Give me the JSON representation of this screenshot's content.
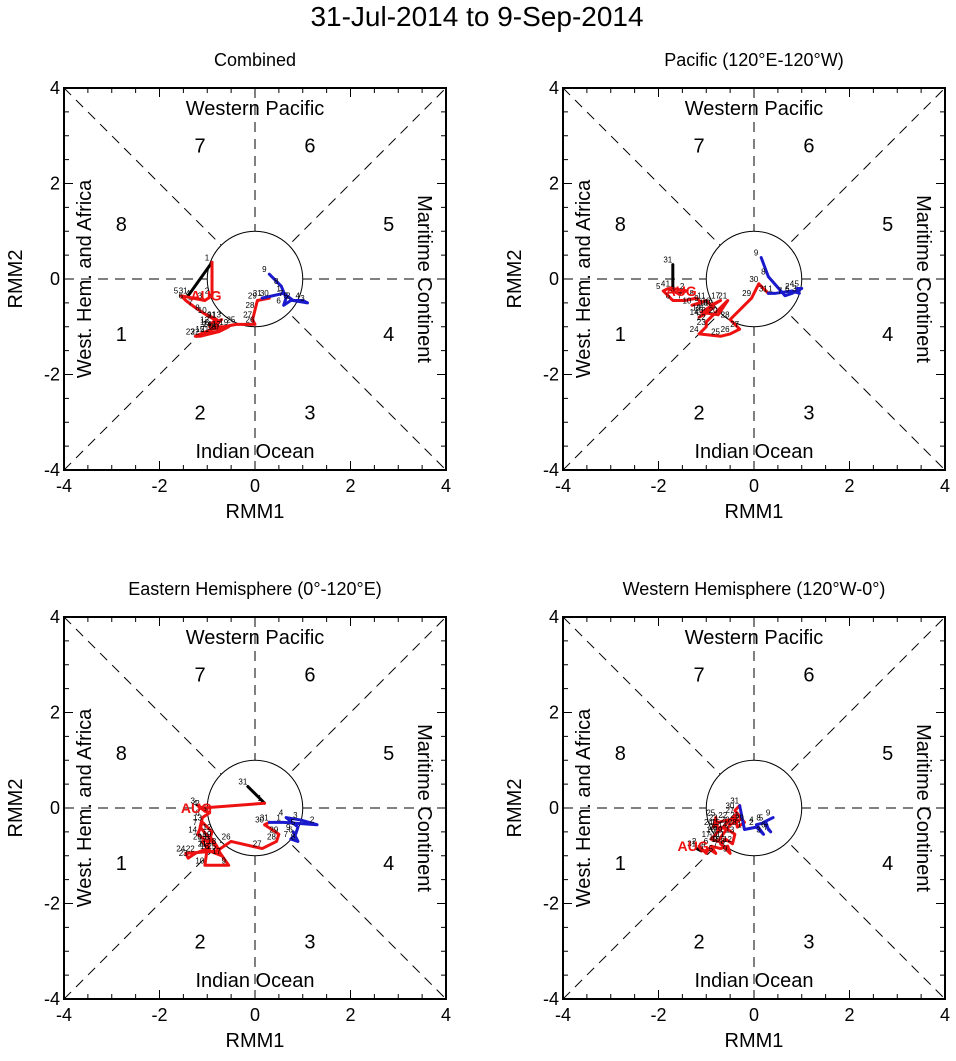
{
  "page_title": "31-Jul-2014 to 9-Sep-2014",
  "colors": {
    "jul": "#000000",
    "aug": "#ee1111",
    "sep": "#1a1acc",
    "frame": "#000000"
  },
  "chart_data": [
    {
      "type": "line",
      "title": "Combined",
      "xlabel": "RMM1",
      "ylabel": "RMM2",
      "xlim": [
        -4,
        4
      ],
      "ylim": [
        -4,
        4
      ],
      "ticks": [
        "-4",
        "-2",
        "0",
        "2",
        "4"
      ],
      "regions": {
        "top": "Western Pacific",
        "bottom": "Indian Ocean",
        "left": "West. Hem. and Africa",
        "right": "Maritime Continent"
      },
      "phases": [
        "1",
        "2",
        "3",
        "4",
        "5",
        "6",
        "7",
        "8"
      ],
      "month_label": "AUG",
      "series": [
        {
          "name": "Jul",
          "color": "#000000",
          "points": [
            [
              -1.4,
              -0.35
            ]
          ],
          "labels": [
            "31"
          ]
        },
        {
          "name": "Aug",
          "color": "#ee1111",
          "points": [
            [
              -0.9,
              0.35
            ],
            [
              -0.9,
              -0.35
            ],
            [
              -1.05,
              -0.45
            ],
            [
              -1.3,
              -0.4
            ],
            [
              -1.55,
              -0.35
            ],
            [
              -1.45,
              -0.45
            ],
            [
              -1.25,
              -0.6
            ],
            [
              -1.1,
              -0.7
            ],
            [
              -0.85,
              -0.85
            ],
            [
              -1.0,
              -0.75
            ],
            [
              -0.8,
              -0.85
            ],
            [
              -0.95,
              -0.95
            ],
            [
              -0.7,
              -0.85
            ],
            [
              -0.9,
              -1.05
            ],
            [
              -1.05,
              -1.15
            ],
            [
              -0.8,
              -1.1
            ],
            [
              -0.7,
              -1.05
            ],
            [
              -0.95,
              -1.0
            ],
            [
              -0.55,
              -1.0
            ],
            [
              -0.75,
              -1.1
            ],
            [
              -0.95,
              -1.15
            ],
            [
              -1.15,
              -1.2
            ],
            [
              -1.25,
              -1.2
            ],
            [
              -0.9,
              -1.05
            ],
            [
              -0.4,
              -0.95
            ],
            [
              0.0,
              -0.95
            ],
            [
              -0.05,
              -0.85
            ],
            [
              0.0,
              -0.65
            ],
            [
              0.05,
              -0.45
            ],
            [
              0.3,
              -0.4
            ],
            [
              0.15,
              -0.4
            ]
          ],
          "labels": [
            "1",
            "2",
            "3",
            "4",
            "5",
            "6",
            "7",
            "8",
            "9",
            "10",
            "11",
            "12",
            "13",
            "14",
            "15",
            "16",
            "17",
            "18",
            "19",
            "20",
            "21",
            "22",
            "23",
            "24",
            "25",
            "26",
            "27",
            "28",
            "29",
            "30",
            "31"
          ]
        },
        {
          "name": "Sep",
          "color": "#1a1acc",
          "points": [
            [
              0.6,
              -0.3
            ],
            [
              0.8,
              -0.45
            ],
            [
              1.1,
              -0.5
            ],
            [
              1.0,
              -0.45
            ],
            [
              0.75,
              -0.45
            ],
            [
              0.6,
              -0.55
            ],
            [
              0.65,
              -0.4
            ],
            [
              0.55,
              -0.15
            ],
            [
              0.3,
              0.1
            ]
          ],
          "labels": [
            "1",
            "2",
            "3",
            "4",
            "5",
            "6",
            "7",
            "8",
            "9"
          ]
        }
      ]
    },
    {
      "type": "line",
      "title": "Pacific (120°E-120°W)",
      "xlabel": "RMM1",
      "ylabel": "RMM2",
      "xlim": [
        -4,
        4
      ],
      "ylim": [
        -4,
        4
      ],
      "ticks": [
        "-4",
        "-2",
        "0",
        "2",
        "4"
      ],
      "regions": {
        "top": "Western Pacific",
        "bottom": "Indian Ocean",
        "left": "West. Hem. and Africa",
        "right": "Maritime Continent"
      },
      "phases": [
        "1",
        "2",
        "3",
        "4",
        "5",
        "6",
        "7",
        "8"
      ],
      "month_label": "AUG",
      "series": [
        {
          "name": "Jul",
          "color": "#000000",
          "points": [
            [
              -1.7,
              0.3
            ]
          ],
          "labels": [
            "31"
          ]
        },
        {
          "name": "Aug",
          "color": "#ee1111",
          "points": [
            [
              -1.7,
              -0.2
            ],
            [
              -1.4,
              -0.25
            ],
            [
              -1.6,
              -0.3
            ],
            [
              -1.8,
              -0.2
            ],
            [
              -1.9,
              -0.25
            ],
            [
              -1.7,
              -0.45
            ],
            [
              -1.45,
              -0.45
            ],
            [
              -1.2,
              -0.4
            ],
            [
              -1.1,
              -0.5
            ],
            [
              -1.3,
              -0.55
            ],
            [
              -1.0,
              -0.45
            ],
            [
              -0.85,
              -0.6
            ],
            [
              -1.05,
              -0.75
            ],
            [
              -1.15,
              -0.8
            ],
            [
              -1.0,
              -0.7
            ],
            [
              -0.9,
              -0.55
            ],
            [
              -0.7,
              -0.45
            ],
            [
              -0.95,
              -0.6
            ],
            [
              -1.1,
              -0.7
            ],
            [
              -0.75,
              -0.75
            ],
            [
              -0.55,
              -0.45
            ],
            [
              -1.0,
              -0.9
            ],
            [
              -1.0,
              -1.0
            ],
            [
              -1.15,
              -1.15
            ],
            [
              -0.7,
              -1.2
            ],
            [
              -0.5,
              -1.15
            ],
            [
              -0.3,
              -1.05
            ],
            [
              -0.5,
              -0.85
            ],
            [
              -0.05,
              -0.4
            ],
            [
              0.1,
              -0.1
            ],
            [
              0.3,
              -0.3
            ]
          ],
          "labels": [
            "1",
            "2",
            "3",
            "4",
            "5",
            "6",
            "7",
            "8",
            "9",
            "10",
            "11",
            "12",
            "13",
            "14",
            "15",
            "16",
            "17",
            "18",
            "19",
            "20",
            "21",
            "22",
            "23",
            "24",
            "25",
            "26",
            "27",
            "28",
            "29",
            "30",
            "31"
          ]
        },
        {
          "name": "Sep",
          "color": "#1a1acc",
          "points": [
            [
              0.45,
              -0.3
            ],
            [
              0.8,
              -0.25
            ],
            [
              0.95,
              -0.3
            ],
            [
              0.9,
              -0.2
            ],
            [
              1.0,
              -0.2
            ],
            [
              0.8,
              -0.3
            ],
            [
              0.65,
              -0.35
            ],
            [
              0.3,
              0.05
            ],
            [
              0.15,
              0.45
            ]
          ],
          "labels": [
            "1",
            "2",
            "3",
            "4",
            "5",
            "6",
            "7",
            "8",
            "9"
          ]
        }
      ]
    },
    {
      "type": "line",
      "title": "Eastern Hemisphere (0°-120°E)",
      "xlabel": "RMM1",
      "ylabel": "RMM2",
      "xlim": [
        -4,
        4
      ],
      "ylim": [
        -4,
        4
      ],
      "ticks": [
        "-4",
        "-2",
        "0",
        "2",
        "4"
      ],
      "regions": {
        "top": "Western Pacific",
        "bottom": "Indian Ocean",
        "left": "West. Hem. and Africa",
        "right": "Maritime Continent"
      },
      "phases": [
        "1",
        "2",
        "3",
        "4",
        "5",
        "6",
        "7",
        "8"
      ],
      "month_label": "AUG",
      "series": [
        {
          "name": "Jul",
          "color": "#000000",
          "points": [
            [
              -0.15,
              0.45
            ]
          ],
          "labels": [
            "31"
          ]
        },
        {
          "name": "Aug",
          "color": "#ee1111",
          "points": [
            [
              0.2,
              0.1
            ],
            [
              -1.1,
              0.0
            ],
            [
              -1.2,
              0.05
            ],
            [
              -1.15,
              0.0
            ],
            [
              -0.95,
              -0.1
            ],
            [
              -1.1,
              -0.2
            ],
            [
              -1.15,
              -0.4
            ],
            [
              -0.9,
              -0.7
            ],
            [
              -0.55,
              -1.2
            ],
            [
              -1.05,
              -1.2
            ],
            [
              -1.0,
              -0.85
            ],
            [
              -0.9,
              -0.5
            ],
            [
              -1.1,
              -0.3
            ],
            [
              -1.2,
              -0.55
            ],
            [
              -1.0,
              -0.7
            ],
            [
              -0.95,
              -0.9
            ],
            [
              -0.7,
              -1.0
            ],
            [
              -0.8,
              -0.8
            ],
            [
              -0.9,
              -0.65
            ],
            [
              -1.1,
              -0.7
            ],
            [
              -1.0,
              -0.85
            ],
            [
              -1.25,
              -0.95
            ],
            [
              -1.4,
              -1.05
            ],
            [
              -1.45,
              -0.95
            ],
            [
              -0.8,
              -0.9
            ],
            [
              -0.5,
              -0.7
            ],
            [
              0.15,
              -0.85
            ],
            [
              0.45,
              -0.7
            ],
            [
              0.5,
              -0.55
            ],
            [
              0.2,
              -0.35
            ],
            [
              0.3,
              -0.3
            ]
          ],
          "labels": [
            "1",
            "2",
            "3",
            "4",
            "5",
            "6",
            "7",
            "8",
            "9",
            "10",
            "11",
            "12",
            "13",
            "14",
            "15",
            "16",
            "17",
            "18",
            "19",
            "20",
            "21",
            "22",
            "23",
            "24",
            "25",
            "26",
            "27",
            "28",
            "29",
            "30",
            "31"
          ]
        },
        {
          "name": "Sep",
          "color": "#1a1acc",
          "points": [
            [
              0.6,
              -0.3
            ],
            [
              1.3,
              -0.35
            ],
            [
              0.95,
              -0.25
            ],
            [
              0.65,
              -0.2
            ],
            [
              0.9,
              -0.4
            ],
            [
              0.85,
              -0.55
            ],
            [
              0.75,
              -0.65
            ],
            [
              0.9,
              -0.7
            ],
            [
              0.8,
              -0.5
            ]
          ],
          "labels": [
            "1",
            "2",
            "3",
            "4",
            "5",
            "6",
            "7",
            "8",
            "9"
          ]
        }
      ]
    },
    {
      "type": "line",
      "title": "Western Hemisphere (120°W-0°)",
      "xlabel": "RMM1",
      "ylabel": "RMM2",
      "xlim": [
        -4,
        4
      ],
      "ylim": [
        -4,
        4
      ],
      "ticks": [
        "-4",
        "-2",
        "0",
        "2",
        "4"
      ],
      "regions": {
        "top": "Western Pacific",
        "bottom": "Indian Ocean",
        "left": "West. Hem. and Africa",
        "right": "Maritime Continent"
      },
      "phases": [
        "1",
        "2",
        "3",
        "4",
        "5",
        "6",
        "7",
        "8"
      ],
      "month_label": "AUG",
      "series": [
        {
          "name": "Jul",
          "color": "#000000",
          "points": [
            [
              -1.2,
              -0.85
            ]
          ],
          "labels": [
            "31"
          ]
        },
        {
          "name": "Aug",
          "color": "#ee1111",
          "points": [
            [
              -1.1,
              -0.9
            ],
            [
              -1.15,
              -0.8
            ],
            [
              -1.0,
              -0.95
            ],
            [
              -0.95,
              -0.85
            ],
            [
              -0.8,
              -0.95
            ],
            [
              -0.9,
              -0.8
            ],
            [
              -0.7,
              -0.85
            ],
            [
              -0.55,
              -0.8
            ],
            [
              -0.5,
              -0.95
            ],
            [
              -0.7,
              -0.75
            ],
            [
              -0.6,
              -0.65
            ],
            [
              -0.45,
              -0.75
            ],
            [
              -0.4,
              -0.55
            ],
            [
              -0.55,
              -0.45
            ],
            [
              -0.7,
              -0.4
            ],
            [
              -0.8,
              -0.55
            ],
            [
              -0.9,
              -0.65
            ],
            [
              -0.75,
              -0.7
            ],
            [
              -0.65,
              -0.55
            ],
            [
              -0.5,
              -0.35
            ],
            [
              -0.3,
              -0.25
            ],
            [
              -0.55,
              -0.25
            ],
            [
              -0.75,
              -0.3
            ],
            [
              -0.85,
              -0.4
            ],
            [
              -0.8,
              -0.2
            ],
            [
              -0.75,
              -0.5
            ],
            [
              -0.4,
              -0.15
            ],
            [
              -0.35,
              -0.4
            ],
            [
              -0.2,
              -0.3
            ],
            [
              -0.4,
              -0.05
            ],
            [
              -0.3,
              0.05
            ]
          ],
          "labels": [
            "1",
            "2",
            "3",
            "4",
            "5",
            "6",
            "7",
            "8",
            "9",
            "10",
            "11",
            "12",
            "13",
            "14",
            "15",
            "16",
            "17",
            "18",
            "19",
            "20",
            "21",
            "22",
            "23",
            "24",
            "25",
            "26",
            "27",
            "28",
            "29",
            "30",
            "31"
          ]
        },
        {
          "name": "Sep",
          "color": "#1a1acc",
          "points": [
            [
              -0.2,
              -0.45
            ],
            [
              0.05,
              -0.4
            ],
            [
              0.2,
              -0.55
            ],
            [
              0.05,
              -0.35
            ],
            [
              0.25,
              -0.3
            ],
            [
              0.3,
              -0.45
            ],
            [
              0.35,
              -0.5
            ],
            [
              0.2,
              -0.3
            ],
            [
              0.4,
              -0.2
            ]
          ],
          "labels": [
            "1",
            "2",
            "3",
            "4",
            "5",
            "6",
            "7",
            "8",
            "9"
          ]
        }
      ]
    }
  ]
}
